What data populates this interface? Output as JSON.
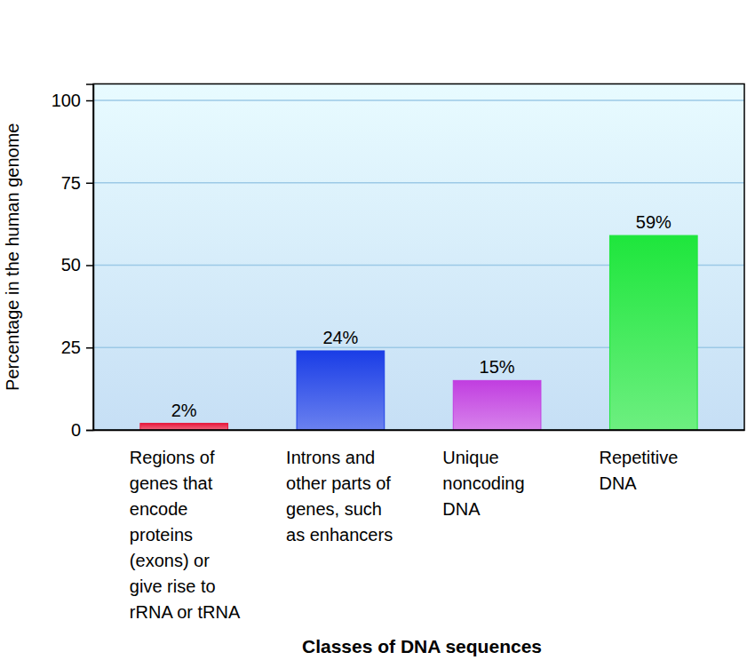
{
  "chart_data": {
    "type": "bar",
    "y_label": "Percentage in the human genome",
    "x_label": "Classes of DNA sequences",
    "categories": [
      "Regions of genes that encode proteins (exons) or give rise to rRNA or tRNA",
      "Introns and other parts of genes, such as enhancers",
      "Unique noncoding DNA",
      "Repetitive DNA"
    ],
    "values": [
      2,
      24,
      15,
      59
    ],
    "value_labels": [
      "2%",
      "24%",
      "15%",
      "59%"
    ],
    "data_labels": true,
    "colors": [
      "#e8183c",
      "#1a3de6",
      "#c13ee0",
      "#1ee63c"
    ],
    "ylim": [
      0,
      105
    ],
    "yticks": [
      0,
      25,
      50,
      75,
      100
    ],
    "grid": true
  }
}
